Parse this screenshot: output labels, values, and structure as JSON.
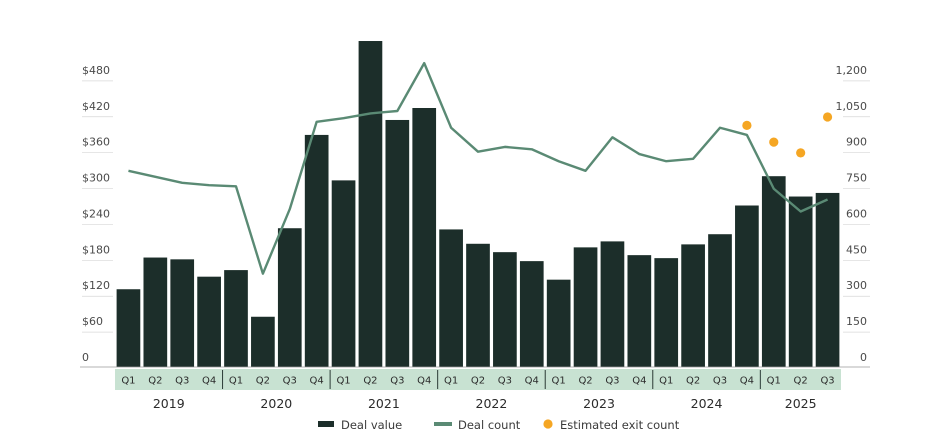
{
  "chart_data": {
    "type": "bar",
    "title": "",
    "xlabel": "",
    "ylabel": "",
    "ylim": [
      0,
      540
    ],
    "y2lim": [
      0,
      1350
    ],
    "y_ticks": [
      "0",
      "$60",
      "$120",
      "$180",
      "$240",
      "$300",
      "$360",
      "$420",
      "$480"
    ],
    "y2_ticks": [
      "0",
      "150",
      "300",
      "450",
      "600",
      "750",
      "900",
      "1,050",
      "1,200"
    ],
    "categories": [
      "Q1",
      "Q2",
      "Q3",
      "Q4",
      "Q1",
      "Q2",
      "Q3",
      "Q4",
      "Q1",
      "Q2",
      "Q3",
      "Q4",
      "Q1",
      "Q2",
      "Q3",
      "Q4",
      "Q1",
      "Q2",
      "Q3",
      "Q4",
      "Q1",
      "Q2",
      "Q3",
      "Q4",
      "Q1",
      "Q2",
      "Q3"
    ],
    "years": [
      "2019",
      "2020",
      "2021",
      "2022",
      "2023",
      "2024",
      "2025"
    ],
    "series": [
      {
        "name": "Deal value",
        "type": "bar",
        "axis": "left",
        "color": "#1c2e2a",
        "values": [
          130,
          183,
          180,
          151,
          162,
          84,
          232,
          388,
          312,
          545,
          413,
          433,
          230,
          206,
          192,
          177,
          146,
          200,
          210,
          187,
          182,
          205,
          222,
          270,
          319,
          285,
          291
        ]
      },
      {
        "name": "Deal count",
        "type": "line",
        "axis": "right",
        "color": "#5a8a74",
        "values": [
          820,
          795,
          770,
          760,
          755,
          390,
          660,
          1025,
          1040,
          1060,
          1070,
          1270,
          1000,
          900,
          920,
          910,
          860,
          820,
          960,
          890,
          860,
          870,
          1000,
          970,
          745,
          650,
          700
        ]
      },
      {
        "name": "Estimated exit count",
        "type": "scatter",
        "axis": "right",
        "color": "#f5a623",
        "points": [
          {
            "index": 23,
            "value": 1010
          },
          {
            "index": 24,
            "value": 940
          },
          {
            "index": 25,
            "value": 895
          },
          {
            "index": 26,
            "value": 1045
          }
        ]
      }
    ],
    "legend_position": "bottom",
    "grid": false
  }
}
